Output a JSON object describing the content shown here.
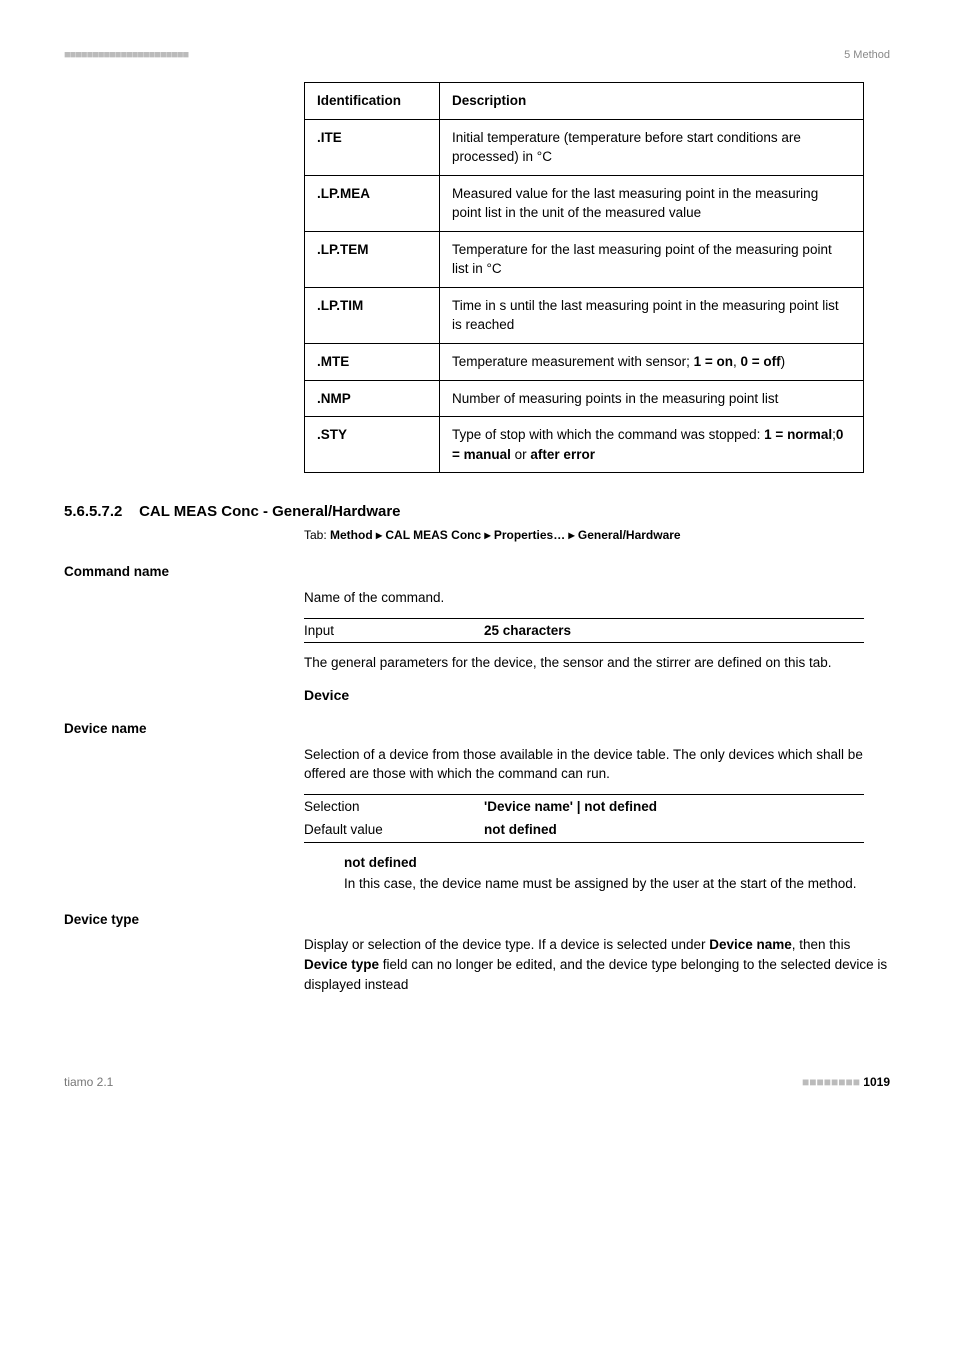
{
  "header": {
    "dashes": "■■■■■■■■■■■■■■■■■■■■■■",
    "chapter": "5 Method"
  },
  "idtable": {
    "head_id": "Identification",
    "head_desc": "Description",
    "rows": [
      {
        "id": ".ITE",
        "desc_pre": "Initial temperature (temperature before start conditions are processed) in °C",
        "bold1": "",
        "mid": "",
        "bold2": "",
        "tail": ""
      },
      {
        "id": ".LP.MEA",
        "desc_pre": "Measured value for the last measuring point in the measuring point list in the unit of the measured value",
        "bold1": "",
        "mid": "",
        "bold2": "",
        "tail": ""
      },
      {
        "id": ".LP.TEM",
        "desc_pre": "Temperature for the last measuring point of the measuring point list in °C",
        "bold1": "",
        "mid": "",
        "bold2": "",
        "tail": ""
      },
      {
        "id": ".LP.TIM",
        "desc_pre": "Time in s until the last measuring point in the measuring point list is reached",
        "bold1": "",
        "mid": "",
        "bold2": "",
        "tail": ""
      },
      {
        "id": ".MTE",
        "desc_pre": "Temperature measurement with sensor; ",
        "bold1": "1 = on",
        "mid": ", ",
        "bold2": "0 = off",
        "tail": ")"
      },
      {
        "id": ".NMP",
        "desc_pre": "Number of measuring points in the measuring point list",
        "bold1": "",
        "mid": "",
        "bold2": "",
        "tail": ""
      },
      {
        "id": ".STY",
        "desc_pre": "Type of stop with which the command was stopped: ",
        "bold1": "1 = normal",
        "mid": ";",
        "bold2": "0 = manual",
        "tail_pre": " or ",
        "bold3": "after error",
        "tail": ""
      }
    ]
  },
  "section": {
    "num": "5.6.5.7.2",
    "title": "CAL MEAS Conc - General/Hardware",
    "tab_label": "Tab: ",
    "tab_path": "Method ▸ CAL MEAS Conc ▸ Properties… ▸ General/Hardware"
  },
  "command_name": {
    "label": "Command name",
    "desc": "Name of the command.",
    "input_label": "Input",
    "input_val": "25 characters",
    "para": "The general parameters for the device, the sensor and the stirrer are defined on this tab."
  },
  "device_head": "Device",
  "device_name": {
    "label": "Device name",
    "para": "Selection of a device from those available in the device table. The only devices which shall be offered are those with which the command can run.",
    "sel_label": "Selection",
    "sel_val": "'Device name' | not defined",
    "def_label": "Default value",
    "def_val": "not defined",
    "note_head": "not defined",
    "note_body": "In this case, the device name must be assigned by the user at the start of the method."
  },
  "device_type": {
    "label": "Device type",
    "para_pre": "Display or selection of the device type. If a device is selected under ",
    "b1": "Device name",
    "mid": ", then this ",
    "b2": "Device type",
    "tail": " field can no longer be edited, and the device type belonging to the selected device is displayed instead"
  },
  "footer": {
    "product": "tiamo 2.1",
    "dashes": "■■■■■■■■",
    "page": "1019"
  }
}
